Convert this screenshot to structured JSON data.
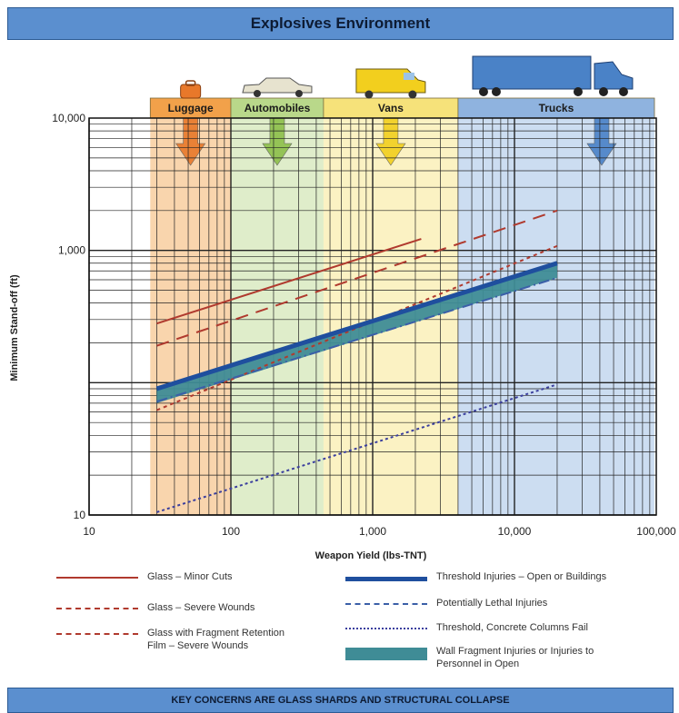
{
  "header": {
    "title": "Explosives Environment"
  },
  "footer": {
    "text": "KEY CONCERNS ARE GLASS SHARDS AND STRUCTURAL COLLAPSE"
  },
  "chart_data": {
    "type": "line",
    "xlabel": "Weapon Yield (lbs-TNT)",
    "ylabel": "Minimum Stand-off (ft)",
    "xscale": "log",
    "yscale": "log",
    "xlim": [
      10,
      100000
    ],
    "ylim": [
      10,
      10000
    ],
    "x_tick_labels": [
      "10",
      "100",
      "1,000",
      "10,000",
      "100,000"
    ],
    "y_tick_labels": [
      "10",
      "1,000",
      "10,000"
    ],
    "grid": true,
    "vehicle_bands": [
      {
        "label": "Luggage",
        "x_from": 27,
        "x_to": 100,
        "color": "#f2a14a",
        "arrow_color": "#e8782a",
        "icon": "suitcase-icon"
      },
      {
        "label": "Automobiles",
        "x_from": 100,
        "x_to": 450,
        "color": "#b9d88a",
        "arrow_color": "#8cbf4a",
        "icon": "car-icon"
      },
      {
        "label": "Vans",
        "x_from": 450,
        "x_to": 4000,
        "color": "#f6e27a",
        "arrow_color": "#f2cf1e",
        "icon": "van-icon"
      },
      {
        "label": "Trucks",
        "x_from": 4000,
        "x_to": 100000,
        "color": "#8fb3df",
        "arrow_color": "#4a82c7",
        "icon": "truck-icon"
      }
    ],
    "series": [
      {
        "name": "Glass – Minor Cuts",
        "style": "solid",
        "color": "#b03a2e",
        "x": [
          30,
          2200
        ],
        "y": [
          280,
          1220
        ]
      },
      {
        "name": "Glass – Severe Wounds",
        "style": "longdash",
        "color": "#b03a2e",
        "x": [
          30,
          20000
        ],
        "y": [
          190,
          2000
        ]
      },
      {
        "name": "Glass with Fragment Retention Film – Severe Wounds",
        "style": "shortdash",
        "color": "#b03a2e",
        "x": [
          30,
          20000
        ],
        "y": [
          62,
          1080
        ]
      },
      {
        "name": "Threshold Injuries – Open or Buildings",
        "style": "thick",
        "color": "#1f4f9e",
        "x": [
          30,
          20000
        ],
        "y": [
          90,
          800
        ]
      },
      {
        "name": "Potentially Lethal Injuries",
        "style": "dashdot",
        "color": "#3b5fa8",
        "x": [
          30,
          20000
        ],
        "y": [
          72,
          620
        ]
      },
      {
        "name": "Threshold, Concrete Columns Fail",
        "style": "dotted",
        "color": "#3b3f9e",
        "x": [
          30,
          20000
        ],
        "y": [
          10.5,
          97
        ]
      },
      {
        "name": "Wall Fragment Injuries or Injuries to Personnel in Open",
        "style": "band",
        "color": "#3f8c96",
        "x": [
          30,
          20000
        ],
        "y_low": [
          70,
          620
        ],
        "y_high": [
          90,
          800
        ]
      }
    ],
    "legend": [
      {
        "label_lines": [
          "Glass – Minor Cuts"
        ],
        "style": "solid",
        "color": "#b03a2e"
      },
      {
        "label_lines": [
          "Glass – Severe Wounds"
        ],
        "style": "longdash",
        "color": "#b03a2e"
      },
      {
        "label_lines": [
          "Glass with Fragment Retention",
          "Film – Severe Wounds"
        ],
        "style": "shortdash",
        "color": "#b03a2e"
      },
      {
        "label_lines": [
          "Threshold Injuries – Open or Buildings"
        ],
        "style": "thick",
        "color": "#1f4f9e"
      },
      {
        "label_lines": [
          "Potentially Lethal Injuries"
        ],
        "style": "dashdot",
        "color": "#3b5fa8"
      },
      {
        "label_lines": [
          "Threshold, Concrete Columns Fail"
        ],
        "style": "dotted",
        "color": "#3b3f9e"
      },
      {
        "label_lines": [
          "Wall Fragment Injuries or Injuries to",
          "Personnel in Open"
        ],
        "style": "band",
        "color": "#3f8c96"
      }
    ],
    "legend_placement": "bottom"
  }
}
